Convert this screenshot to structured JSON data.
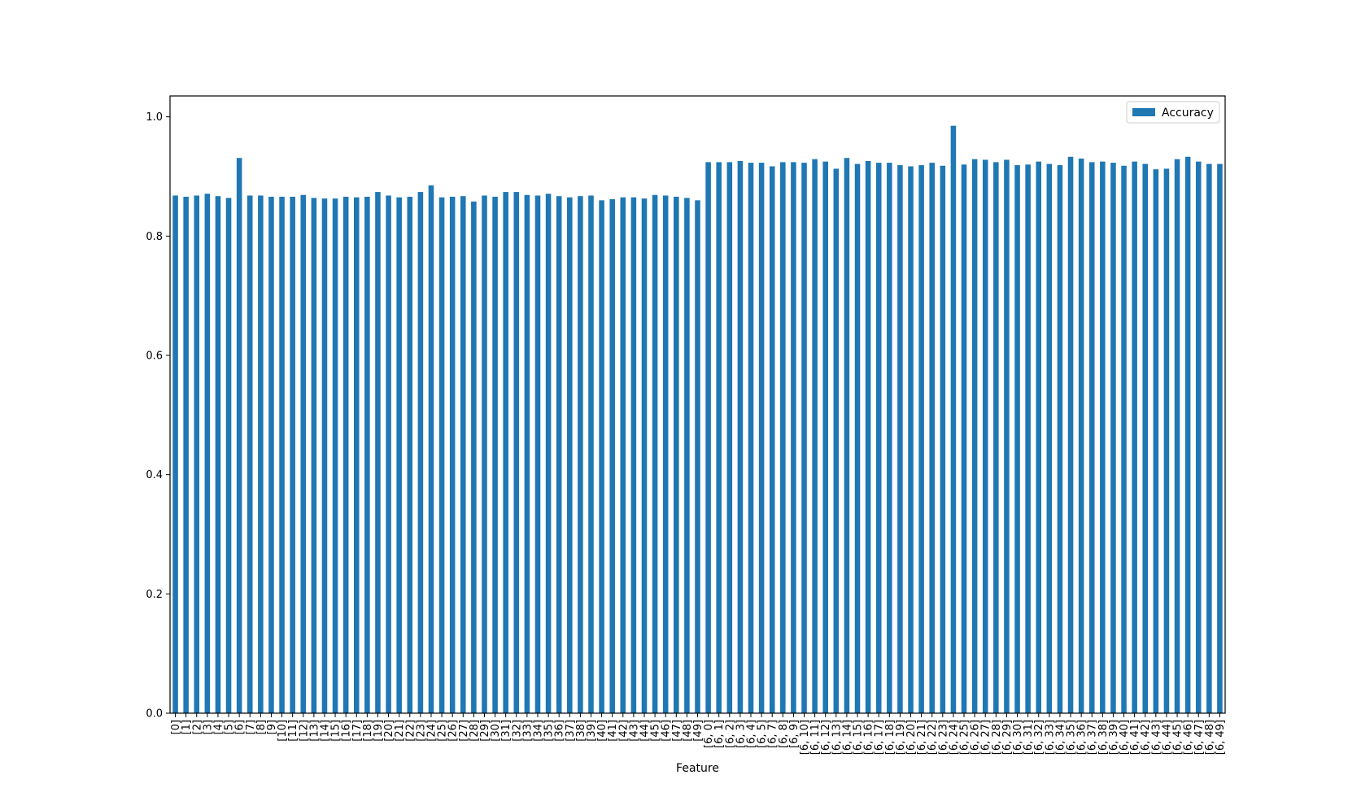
{
  "chart_data": {
    "type": "bar",
    "title": "",
    "xlabel": "Feature",
    "ylabel": "",
    "ylim": [
      0,
      1.035
    ],
    "yticks": [
      0.0,
      0.2,
      0.4,
      0.6,
      0.8,
      1.0
    ],
    "ytick_labels": [
      "0.0",
      "0.2",
      "0.4",
      "0.6",
      "0.8",
      "1.0"
    ],
    "grid": false,
    "legend_position": "top-right",
    "bar_color": "#1f77b4",
    "categories": [
      "[0]",
      "[1]",
      "[2]",
      "[3]",
      "[4]",
      "[5]",
      "[6]",
      "[7]",
      "[8]",
      "[9]",
      "[10]",
      "[11]",
      "[12]",
      "[13]",
      "[14]",
      "[15]",
      "[16]",
      "[17]",
      "[18]",
      "[19]",
      "[20]",
      "[21]",
      "[22]",
      "[23]",
      "[24]",
      "[25]",
      "[26]",
      "[27]",
      "[28]",
      "[29]",
      "[30]",
      "[31]",
      "[32]",
      "[33]",
      "[34]",
      "[35]",
      "[36]",
      "[37]",
      "[38]",
      "[39]",
      "[40]",
      "[41]",
      "[42]",
      "[43]",
      "[44]",
      "[45]",
      "[46]",
      "[47]",
      "[48]",
      "[49]",
      "[6, 0]",
      "[6, 1]",
      "[6, 2]",
      "[6, 3]",
      "[6, 4]",
      "[6, 5]",
      "[6, 7]",
      "[6, 8]",
      "[6, 9]",
      "[6, 10]",
      "[6, 11]",
      "[6, 12]",
      "[6, 13]",
      "[6, 14]",
      "[6, 15]",
      "[6, 16]",
      "[6, 17]",
      "[6, 18]",
      "[6, 19]",
      "[6, 20]",
      "[6, 21]",
      "[6, 22]",
      "[6, 23]",
      "[6, 24]",
      "[6, 25]",
      "[6, 26]",
      "[6, 27]",
      "[6, 28]",
      "[6, 29]",
      "[6, 30]",
      "[6, 31]",
      "[6, 32]",
      "[6, 33]",
      "[6, 34]",
      "[6, 35]",
      "[6, 36]",
      "[6, 37]",
      "[6, 38]",
      "[6, 39]",
      "[6, 40]",
      "[6, 41]",
      "[6, 42]",
      "[6, 43]",
      "[6, 44]",
      "[6, 45]",
      "[6, 46]",
      "[6, 47]",
      "[6, 48]",
      "[6, 49]"
    ],
    "series": [
      {
        "name": "Accuracy",
        "values": [
          0.868,
          0.866,
          0.868,
          0.871,
          0.867,
          0.864,
          0.931,
          0.868,
          0.868,
          0.866,
          0.866,
          0.866,
          0.869,
          0.864,
          0.863,
          0.863,
          0.866,
          0.865,
          0.866,
          0.874,
          0.868,
          0.865,
          0.866,
          0.874,
          0.885,
          0.865,
          0.866,
          0.867,
          0.858,
          0.868,
          0.866,
          0.874,
          0.874,
          0.869,
          0.868,
          0.871,
          0.867,
          0.865,
          0.867,
          0.868,
          0.86,
          0.862,
          0.865,
          0.865,
          0.863,
          0.869,
          0.868,
          0.866,
          0.864,
          0.86,
          0.924,
          0.924,
          0.924,
          0.926,
          0.923,
          0.923,
          0.917,
          0.924,
          0.924,
          0.923,
          0.929,
          0.925,
          0.913,
          0.931,
          0.921,
          0.926,
          0.923,
          0.923,
          0.919,
          0.917,
          0.919,
          0.923,
          0.918,
          0.985,
          0.92,
          0.929,
          0.928,
          0.924,
          0.928,
          0.919,
          0.92,
          0.925,
          0.921,
          0.919,
          0.933,
          0.93,
          0.924,
          0.925,
          0.923,
          0.918,
          0.925,
          0.921,
          0.912,
          0.913,
          0.929,
          0.933,
          0.925,
          0.921,
          0.921
        ]
      }
    ]
  }
}
